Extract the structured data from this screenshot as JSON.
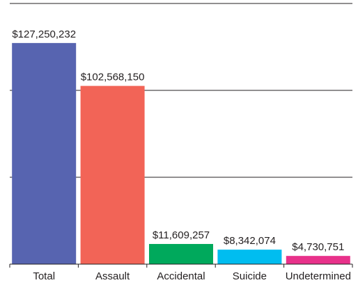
{
  "chart_data": {
    "type": "bar",
    "categories": [
      "Total",
      "Assault",
      "Accidental",
      "Suicide",
      "Undetermined"
    ],
    "values": [
      127250232,
      102568150,
      11609257,
      8342074,
      4730751
    ],
    "value_labels": [
      "$127,250,232",
      "$102,568,150",
      "$11,609,257",
      "$8,342,074",
      "$4,730,751"
    ],
    "colors": [
      "#5764b0",
      "#f26457",
      "#00a95c",
      "#00bdf0",
      "#e8318a"
    ],
    "ylim": [
      0,
      150000000
    ],
    "y_gridlines": [
      50000000,
      100000000,
      150000000
    ],
    "grid": true,
    "legend": "none"
  }
}
